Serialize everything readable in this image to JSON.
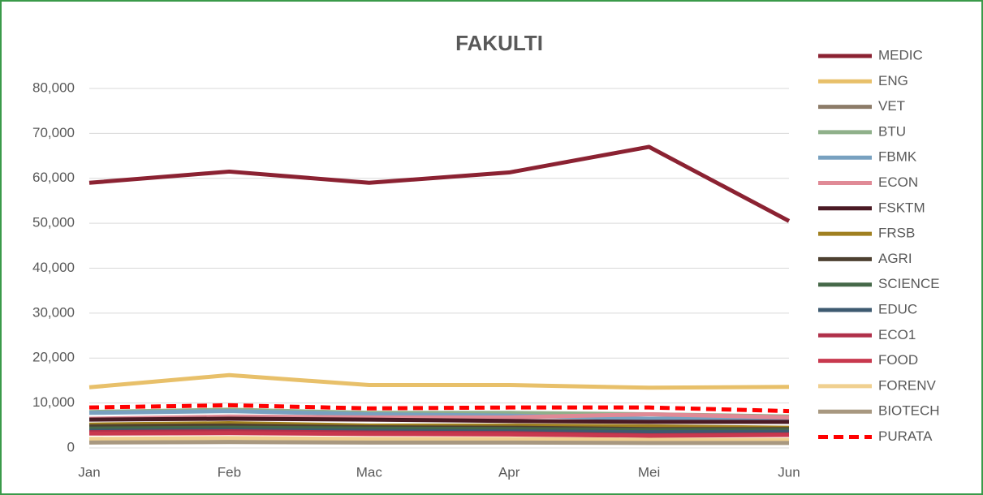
{
  "chart_data": {
    "type": "line",
    "title": "FAKULTI",
    "categories": [
      "Jan",
      "Feb",
      "Mac",
      "Apr",
      "Mei",
      "Jun"
    ],
    "ylim": [
      0,
      80000
    ],
    "yticks": [
      0,
      {
        "value": 10000,
        "label": "10,000"
      },
      {
        "value": 20000,
        "label": "20,000"
      },
      {
        "value": 30000,
        "label": "30,000"
      },
      {
        "value": 40000,
        "label": "40,000"
      },
      {
        "value": 50000,
        "label": "50,000"
      },
      {
        "value": 60000,
        "label": "60,000"
      },
      {
        "value": 70000,
        "label": "70,000"
      },
      {
        "value": 80000,
        "label": "80,000"
      }
    ],
    "grid": true,
    "legend": "right",
    "series": [
      {
        "name": "MEDIC",
        "color": "#8b2232",
        "values": [
          59000,
          61500,
          59000,
          61300,
          67000,
          50500
        ]
      },
      {
        "name": "ENG",
        "color": "#e8c06a",
        "values": [
          13500,
          16200,
          14000,
          14000,
          13400,
          13600
        ]
      },
      {
        "name": "VET",
        "color": "#8c7b68",
        "values": [
          1500,
          1600,
          1500,
          1500,
          1400,
          1400
        ]
      },
      {
        "name": "BTU",
        "color": "#8fb08a",
        "values": [
          8000,
          8500,
          7800,
          7800,
          7500,
          7000
        ]
      },
      {
        "name": "FBMK",
        "color": "#78a1c0",
        "values": [
          7800,
          8200,
          7500,
          7200,
          6500,
          6500
        ]
      },
      {
        "name": "ECON",
        "color": "#e08a96",
        "values": [
          6500,
          7000,
          6800,
          6800,
          7500,
          6800
        ]
      },
      {
        "name": "FSKTM",
        "color": "#4a1a24",
        "values": [
          6300,
          6500,
          6300,
          6000,
          5800,
          5800
        ]
      },
      {
        "name": "FRSB",
        "color": "#a08020",
        "values": [
          5200,
          5500,
          5000,
          5000,
          4800,
          4500
        ]
      },
      {
        "name": "AGRI",
        "color": "#4d4030",
        "values": [
          4800,
          5000,
          4600,
          4500,
          4200,
          4200
        ]
      },
      {
        "name": "SCIENCE",
        "color": "#456848",
        "values": [
          4300,
          4500,
          4300,
          4200,
          4000,
          4000
        ]
      },
      {
        "name": "EDUC",
        "color": "#3d5a70",
        "values": [
          3800,
          4000,
          3800,
          3700,
          3500,
          3600
        ]
      },
      {
        "name": "ECO1",
        "color": "#b0304a",
        "values": [
          3500,
          3700,
          3400,
          3300,
          2800,
          3000
        ]
      },
      {
        "name": "FOOD",
        "color": "#c8384e",
        "values": [
          3200,
          3300,
          3100,
          3000,
          2700,
          2900
        ]
      },
      {
        "name": "FORENV",
        "color": "#f0d090",
        "values": [
          2000,
          2200,
          2000,
          2000,
          1800,
          1800
        ]
      },
      {
        "name": "BIOTECH",
        "color": "#a89880",
        "values": [
          1200,
          1300,
          1200,
          1200,
          1100,
          1100
        ]
      },
      {
        "name": "PURATA",
        "color": "#ff0000",
        "dashed": true,
        "values": [
          9000,
          9500,
          8800,
          9000,
          9000,
          8200
        ]
      }
    ]
  }
}
